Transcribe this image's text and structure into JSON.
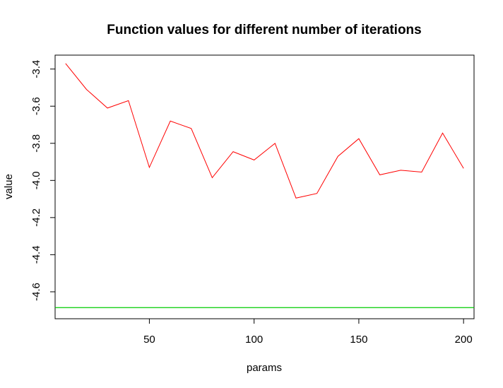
{
  "chart_data": {
    "type": "line",
    "title": "Function values for different number of iterations",
    "xlabel": "params",
    "ylabel": "value",
    "xlim": [
      5,
      205
    ],
    "ylim": [
      -4.745,
      -3.325
    ],
    "x_ticks": [
      50,
      100,
      150,
      200
    ],
    "x_tick_labels": [
      "50",
      "100",
      "150",
      "200"
    ],
    "y_ticks": [
      -3.4,
      -3.6,
      -3.8,
      -4.0,
      -4.2,
      -4.4,
      -4.6
    ],
    "y_tick_labels": [
      "-3.4",
      "-3.6",
      "-3.8",
      "-4.0",
      "-4.2",
      "-4.4",
      "-4.6"
    ],
    "grid": false,
    "legend": "none",
    "series": [
      {
        "color": "#ff0000",
        "x": [
          10,
          20,
          30,
          40,
          50,
          60,
          70,
          80,
          90,
          100,
          110,
          120,
          130,
          140,
          150,
          160,
          170,
          180,
          190,
          200
        ],
        "values": [
          -3.37,
          -3.51,
          -3.61,
          -3.57,
          -3.93,
          -3.68,
          -3.72,
          -3.985,
          -3.845,
          -3.89,
          -3.8,
          -4.095,
          -4.07,
          -3.87,
          -3.775,
          -3.97,
          -3.945,
          -3.955,
          -3.745,
          -3.935
        ]
      }
    ],
    "hlines": [
      {
        "y": -4.685,
        "color": "#00cc00"
      }
    ]
  }
}
